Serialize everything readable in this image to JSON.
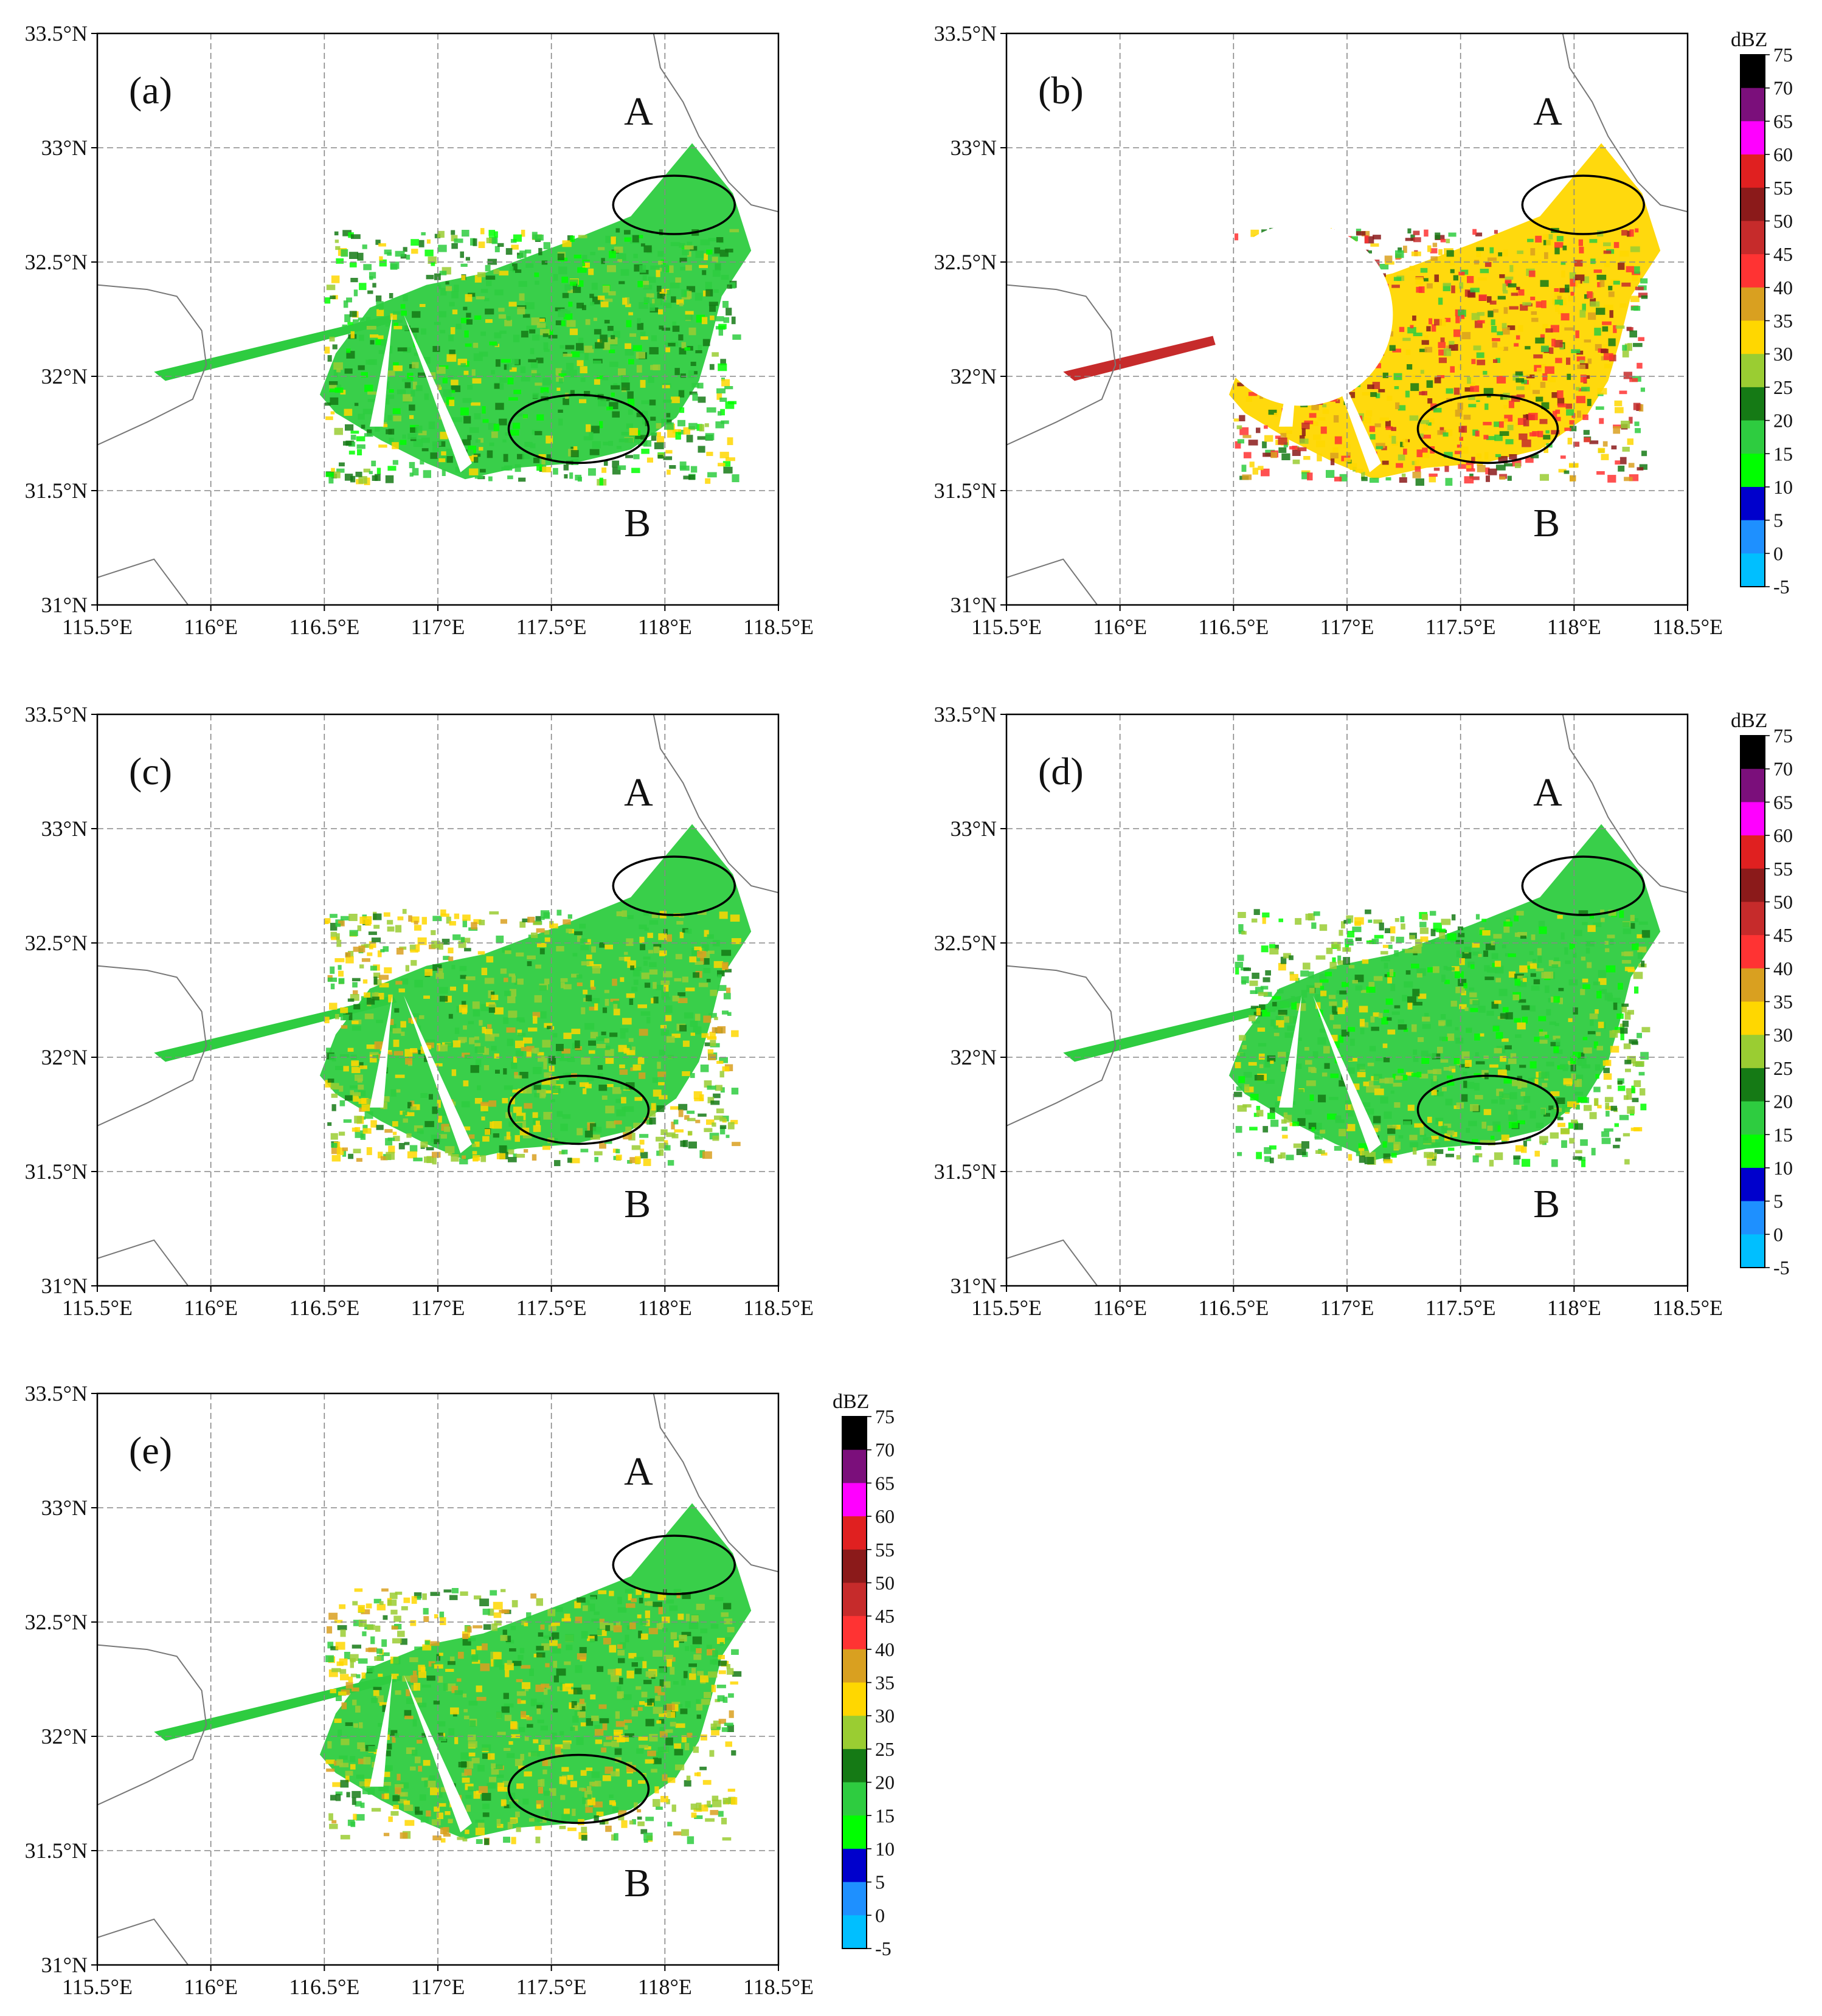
{
  "figure": {
    "panels": [
      {
        "id": "a",
        "label": "(a)",
        "regions": {
          "a": "A",
          "b": "B"
        },
        "intensity": "low",
        "truncated": false
      },
      {
        "id": "b",
        "label": "(b)",
        "regions": {
          "a": "A",
          "b": "B"
        },
        "intensity": "high",
        "truncated": true
      },
      {
        "id": "c",
        "label": "(c)",
        "regions": {
          "a": "A",
          "b": "B"
        },
        "intensity": "medium",
        "truncated": false
      },
      {
        "id": "d",
        "label": "(d)",
        "regions": {
          "a": "A",
          "b": "B"
        },
        "intensity": "low-medium",
        "truncated": false
      },
      {
        "id": "e",
        "label": "(e)",
        "regions": {
          "a": "A",
          "b": "B"
        },
        "intensity": "medium",
        "truncated": false
      }
    ],
    "lon_ticks": [
      "115.5°E",
      "116°E",
      "116.5°E",
      "117°E",
      "117.5°E",
      "118°E",
      "118.5°E"
    ],
    "lat_ticks": [
      "31°N",
      "31.5°N",
      "32°N",
      "32.5°N",
      "33°N",
      "33.5°N"
    ],
    "colorbar": {
      "unit": "dBZ",
      "levels": [
        "75",
        "70",
        "65",
        "60",
        "55",
        "50",
        "45",
        "40",
        "35",
        "30",
        "25",
        "20",
        "15",
        "10",
        "5",
        "0",
        "-5"
      ],
      "colors": [
        "#000000",
        "#7b0f7b",
        "#ff00ff",
        "#e02020",
        "#8b1a1a",
        "#c62b2b",
        "#ff3333",
        "#d9a020",
        "#ffd700",
        "#9acd32",
        "#157a15",
        "#2ecc40",
        "#00ff00",
        "#0000cc",
        "#1e90ff",
        "#00bfff"
      ]
    }
  }
}
